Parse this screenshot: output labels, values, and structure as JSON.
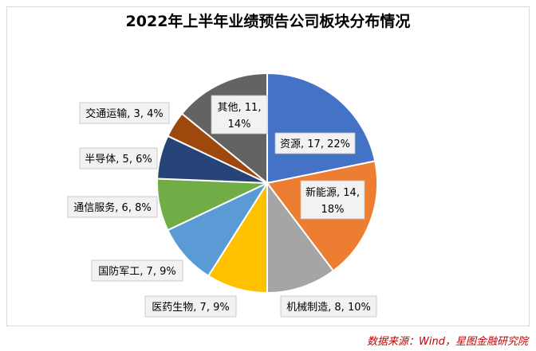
{
  "chart_data": {
    "type": "pie",
    "title": "2022年上半年业绩预告公司板块分布情况",
    "slices": [
      {
        "name": "资源",
        "count": 17,
        "percent": 22,
        "label": "资源, 17, 22%",
        "color": "#4472c4"
      },
      {
        "name": "新能源",
        "count": 14,
        "percent": 18,
        "label": "新能源, 14, 18%",
        "color": "#ed7d31"
      },
      {
        "name": "机械制造",
        "count": 8,
        "percent": 10,
        "label": "机械制造, 8, 10%",
        "color": "#a5a5a5"
      },
      {
        "name": "医药生物",
        "count": 7,
        "percent": 9,
        "label": "医药生物, 7, 9%",
        "color": "#ffc000"
      },
      {
        "name": "国防军工",
        "count": 7,
        "percent": 9,
        "label": "国防军工, 7, 9%",
        "color": "#5b9bd5"
      },
      {
        "name": "通信服务",
        "count": 6,
        "percent": 8,
        "label": "通信服务, 6, 8%",
        "color": "#70ad47"
      },
      {
        "name": "半导体",
        "count": 5,
        "percent": 6,
        "label": "半导体, 5, 6%",
        "color": "#264478"
      },
      {
        "name": "交通运输",
        "count": 3,
        "percent": 4,
        "label": "交通运输, 3, 4%",
        "color": "#9e480e"
      },
      {
        "name": "其他",
        "count": 11,
        "percent": 14,
        "label": "其他, 11, 14%",
        "color": "#636363"
      }
    ],
    "legend": "none"
  },
  "source_note": "数据来源：Wind，星图金融研究院"
}
